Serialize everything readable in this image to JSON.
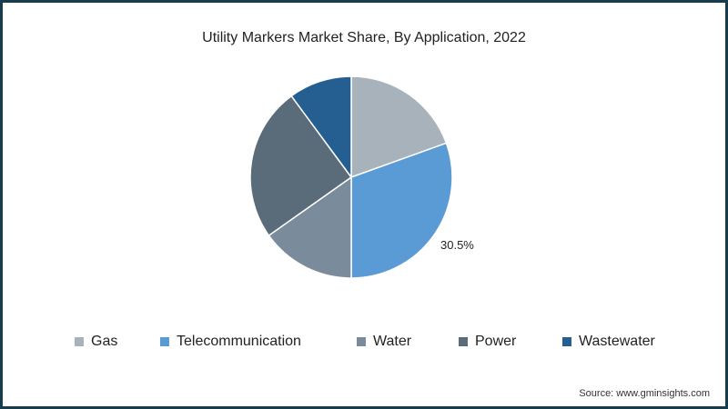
{
  "chart_data": {
    "type": "pie",
    "title": "Utility Markers Market Share, By Application, 2022",
    "categories": [
      "Gas",
      "Telecommunication",
      "Water",
      "Power",
      "Wastewater"
    ],
    "values": [
      19.5,
      30.5,
      15.2,
      24.7,
      10.1
    ],
    "unit": "%",
    "colors": [
      "#a7b2bb",
      "#5b9bd5",
      "#7a8b9c",
      "#5a6b7a",
      "#255e91"
    ],
    "data_labels": [
      {
        "category": "Telecommunication",
        "label": "30.5%"
      }
    ],
    "legend_position": "bottom",
    "start_angle": "12 o'clock, clockwise"
  },
  "title": "Utility Markers Market Share, By Application, 2022",
  "pct_label": "30.5%",
  "legend": [
    {
      "label": "Gas",
      "color": "#a7b2bb"
    },
    {
      "label": "Telecommunication",
      "color": "#5b9bd5"
    },
    {
      "label": "Water",
      "color": "#7a8b9c"
    },
    {
      "label": "Power",
      "color": "#5a6b7a"
    },
    {
      "label": "Wastewater",
      "color": "#255e91"
    }
  ],
  "source": "Source: www.gminsights.com",
  "frame_color": "#173d4c"
}
